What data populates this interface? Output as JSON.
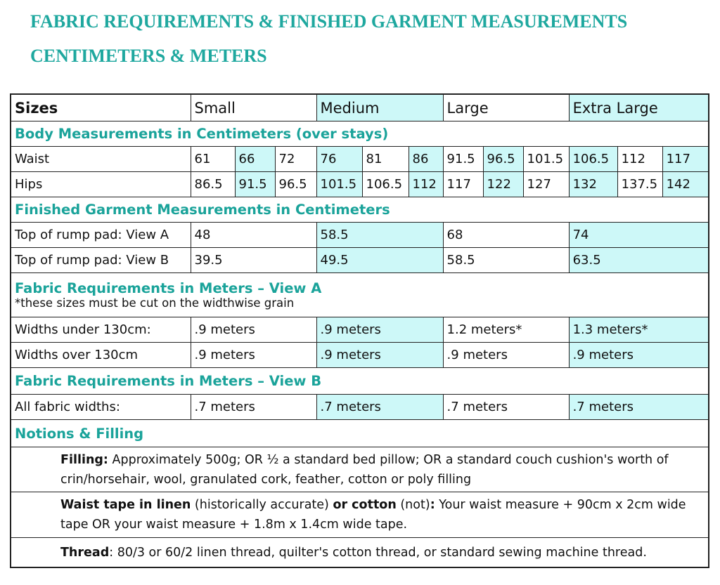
{
  "header": {
    "title": "FABRIC REQUIREMENTS & FINISHED GARMENT MEASUREMENTS",
    "subtitle": "CENTIMETERS & METERS"
  },
  "table": {
    "sizes_label": "Sizes",
    "sizes": [
      "Small",
      "Medium",
      "Large",
      "Extra Large"
    ],
    "body_heading": "Body Measurements in Centimeters (over stays)",
    "waist": {
      "label": "Waist",
      "values": [
        61,
        66,
        72,
        76,
        81,
        86,
        91.5,
        96.5,
        101.5,
        106.5,
        112,
        117
      ]
    },
    "hips": {
      "label": "Hips",
      "values": [
        86.5,
        91.5,
        96.5,
        101.5,
        106.5,
        112,
        117,
        122,
        127,
        132,
        137.5,
        142
      ]
    },
    "garment_heading": "Finished Garment Measurements in Centimeters",
    "rump_a": {
      "label": "Top of rump pad: View A",
      "values": [
        48,
        58.5,
        68,
        74
      ]
    },
    "rump_b": {
      "label": "Top of rump pad: View B",
      "values": [
        39.5,
        49.5,
        58.5,
        63.5
      ]
    },
    "view_a_heading": "Fabric Requirements in Meters –  View A",
    "view_a_note": "*these sizes must be cut on the widthwise grain",
    "widths_under": {
      "label": "Widths under 130cm:",
      "values": [
        ".9 meters",
        ".9 meters",
        "1.2 meters*",
        "1.3 meters*"
      ]
    },
    "widths_over": {
      "label": "Widths over 130cm",
      "values": [
        ".9 meters",
        ".9 meters",
        ".9 meters",
        ".9 meters"
      ]
    },
    "view_b_heading": "Fabric Requirements in Meters –  View B",
    "all_widths": {
      "label": "All fabric widths:",
      "values": [
        ".7 meters",
        ".7 meters",
        ".7 meters",
        ".7 meters"
      ]
    },
    "notions_heading": "Notions & Filling",
    "filling": [
      "Filling:",
      " Approximately 500g; OR ½ a standard bed pillow; OR a standard couch cushion's worth of crin/horsehair, wool, granulated cork, feather, cotton or poly filling"
    ],
    "waist_tape": [
      "Waist tape in linen",
      " (historically accurate) ",
      "or cotton",
      " (not)",
      ":",
      " Your waist measure + 90cm x 2cm wide tape OR your waist measure + 1.8m  x 1.4cm  wide tape."
    ],
    "thread": [
      "Thread",
      ":  80/3 or 60/2 linen thread, quilter's cotton thread, or standard sewing machine thread."
    ]
  }
}
